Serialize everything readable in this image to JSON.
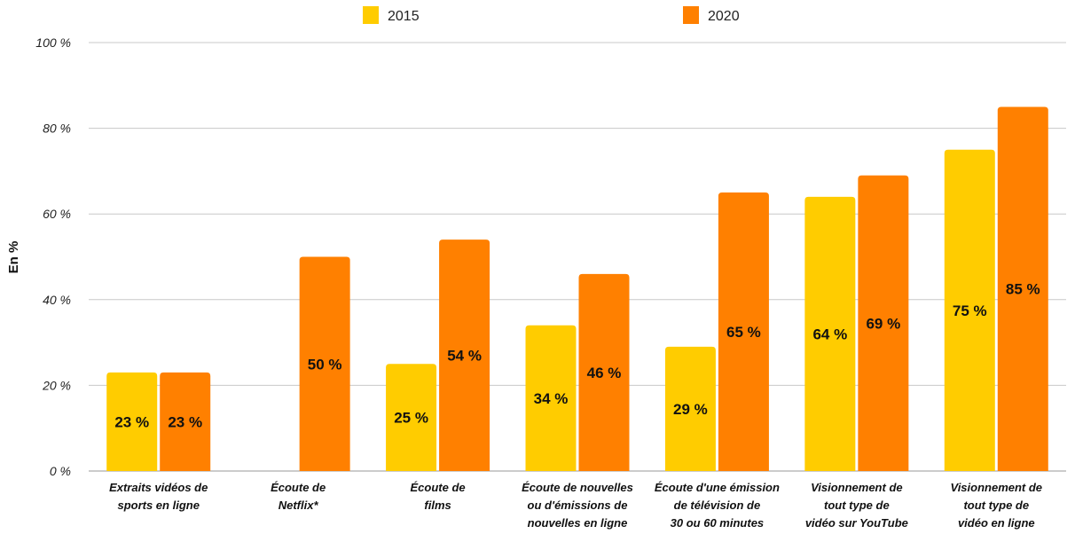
{
  "chart_data": {
    "type": "bar",
    "title": "",
    "xlabel": "",
    "ylabel": "En %",
    "ylim": [
      0,
      100
    ],
    "yticks": [
      0,
      20,
      40,
      60,
      80,
      100
    ],
    "ytick_labels": [
      "0 %",
      "20 %",
      "40 %",
      "60 %",
      "80 %",
      "100 %"
    ],
    "grid": true,
    "legend_position": "top",
    "categories": [
      [
        "Extraits vidéos de",
        "sports en ligne"
      ],
      [
        "Écoute de",
        "Netflix*"
      ],
      [
        "Écoute de",
        "films"
      ],
      [
        "Écoute de nouvelles",
        "ou d'émissions de",
        "nouvelles en ligne"
      ],
      [
        "Écoute d'une émission",
        "de télévision de",
        "30 ou 60 minutes"
      ],
      [
        "Visionnement de",
        "tout type de",
        "vidéo sur YouTube"
      ],
      [
        "Visionnement de",
        "tout type de",
        "vidéo en ligne"
      ]
    ],
    "series": [
      {
        "name": "2015",
        "color": "#FFCC00",
        "values": [
          23,
          null,
          25,
          34,
          29,
          64,
          75
        ],
        "labels": [
          "23 %",
          "",
          "25 %",
          "34 %",
          "29 %",
          "64 %",
          "75 %"
        ]
      },
      {
        "name": "2020",
        "color": "#FF8000",
        "values": [
          23,
          50,
          54,
          46,
          65,
          69,
          85
        ],
        "labels": [
          "23 %",
          "50 %",
          "54 %",
          "46 %",
          "65 %",
          "69 %",
          "85 %"
        ]
      }
    ]
  }
}
